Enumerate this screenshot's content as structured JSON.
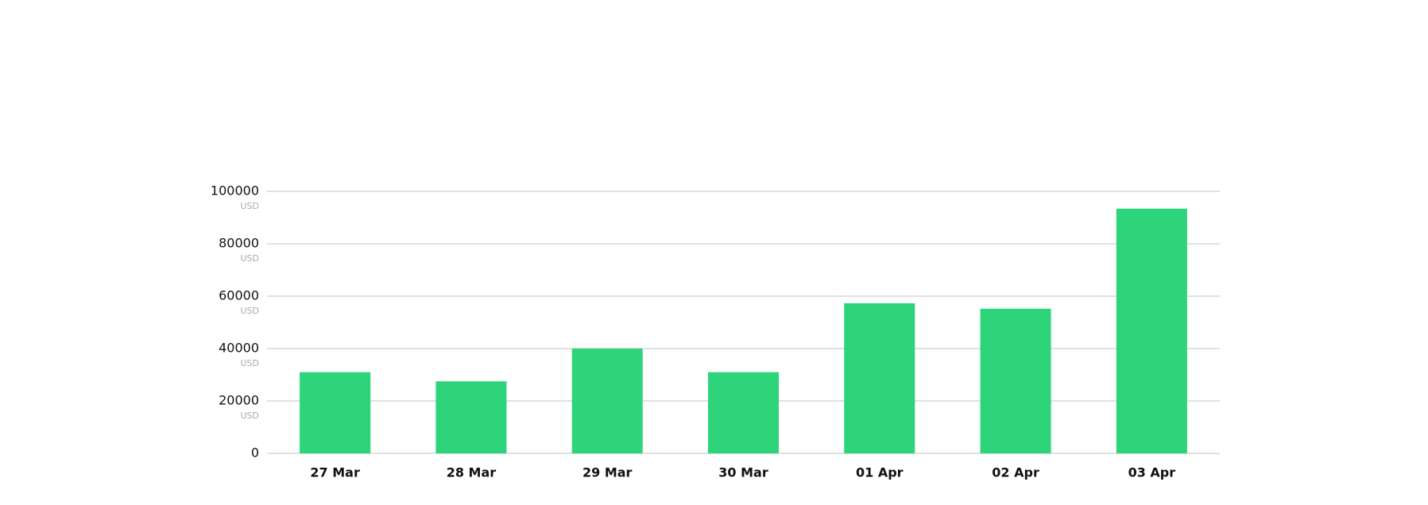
{
  "chart_data": {
    "type": "bar",
    "categories": [
      "27 Mar",
      "28 Mar",
      "29 Mar",
      "30 Mar",
      "01 Apr",
      "02 Apr",
      "03 Apr"
    ],
    "values": [
      31000,
      27500,
      40000,
      31000,
      57300,
      55200,
      93400
    ],
    "color": "#2ed47a",
    "ylim": [
      0,
      100000
    ],
    "yticks": [
      0,
      20000,
      40000,
      60000,
      80000,
      100000
    ],
    "y_unit": "USD",
    "grid": true
  }
}
